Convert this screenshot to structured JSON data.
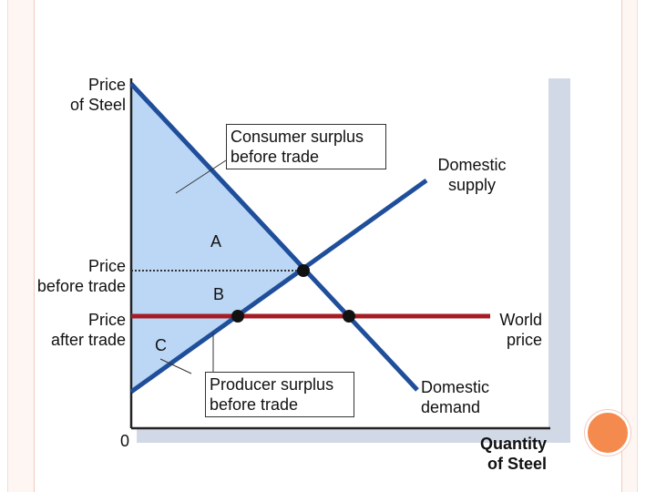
{
  "axes": {
    "y_title": [
      "Price",
      "of Steel"
    ],
    "x_title": [
      "Quantity",
      "of Steel"
    ],
    "origin": "0"
  },
  "price_labels": {
    "before_trade": [
      "Price",
      "before trade"
    ],
    "after_trade": [
      "Price",
      "after trade"
    ]
  },
  "curves": {
    "supply": [
      "Domestic",
      "supply"
    ],
    "demand": [
      "Domestic",
      "demand"
    ],
    "world_price": [
      "World",
      "price"
    ]
  },
  "areas": {
    "a": "A",
    "b": "B",
    "c": "C"
  },
  "callouts": {
    "consumer_surplus": [
      "Consumer surplus",
      "before trade"
    ],
    "producer_surplus": [
      "Producer surplus",
      "before trade"
    ]
  },
  "colors": {
    "curve": "#1f4e9a",
    "world_price": "#a51c24",
    "surplus_fill": "#bcd7f5",
    "shadow": "#d2d9e6"
  }
}
